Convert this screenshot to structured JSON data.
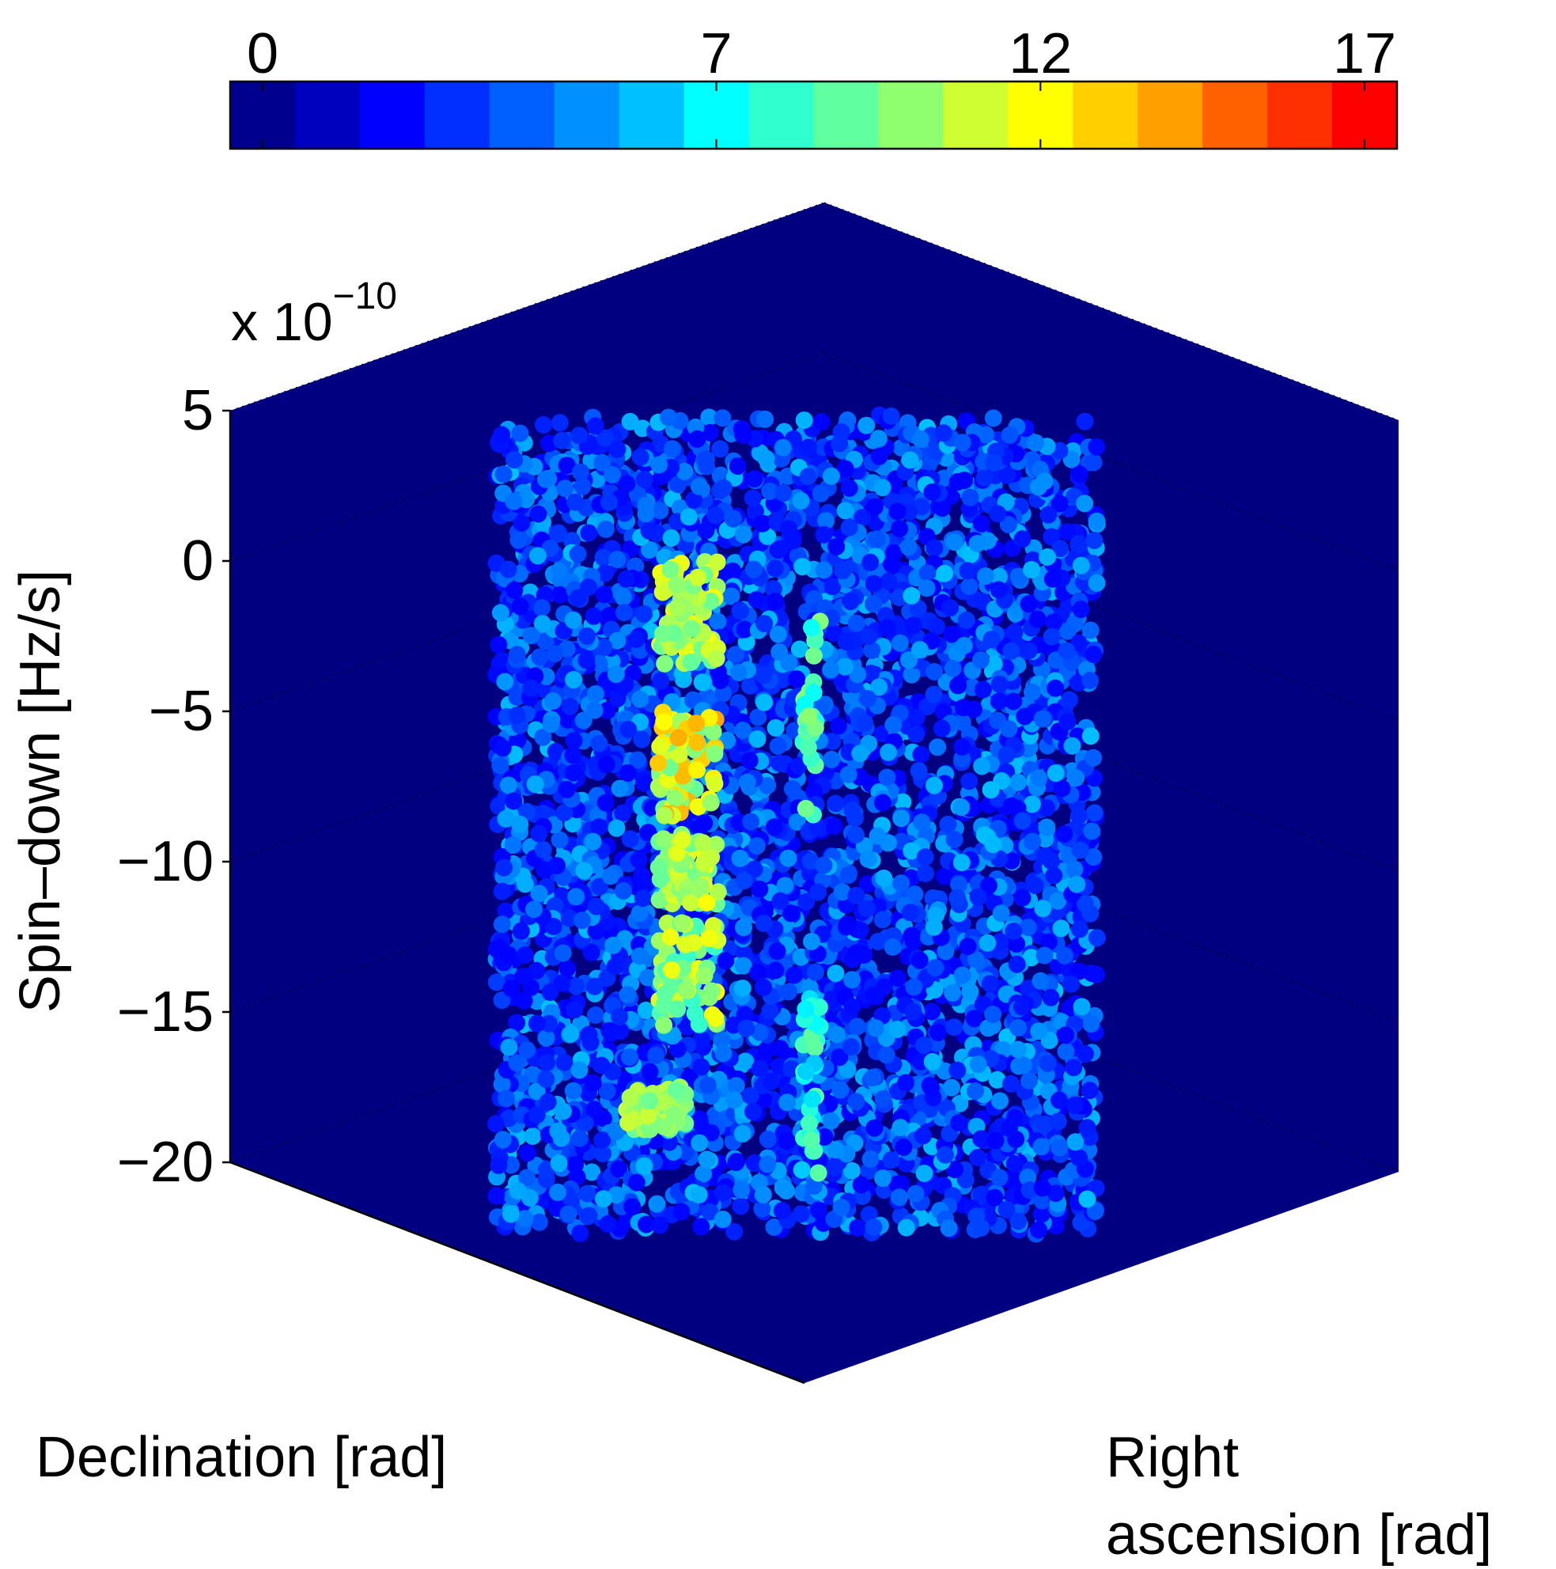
{
  "chart_data": {
    "type": "scatter",
    "title": "",
    "ylabel": "Spin–down [Hz/s]",
    "xlabel": "Declination [rad]",
    "zlabel_lines": [
      "Right",
      "ascension [rad]"
    ],
    "y_exponent": {
      "base": "x 10",
      "power": "−10"
    },
    "y_range": [
      -20,
      5
    ],
    "y_ticks": [
      5,
      0,
      -5,
      -10,
      -15,
      -20
    ],
    "y_tick_labels": [
      "5",
      "0",
      "−5",
      "−10",
      "−15",
      "−20"
    ],
    "y_unit_scale": 1e-10,
    "grid": true,
    "background_color": "#000080",
    "colorbar": {
      "placement": "top",
      "range": [
        0,
        17
      ],
      "ticks": [
        0,
        7,
        12,
        17
      ],
      "tick_labels": [
        "0",
        "7",
        "12",
        "17"
      ],
      "colors": [
        "#00008f",
        "#0000bf",
        "#0000ff",
        "#0030ff",
        "#0060ff",
        "#0090ff",
        "#00c0ff",
        "#00ffff",
        "#30ffcf",
        "#60ff9f",
        "#90ff6f",
        "#cfff30",
        "#ffff00",
        "#ffcf00",
        "#ff9f00",
        "#ff6000",
        "#ff3000",
        "#ff0000"
      ]
    },
    "series": [
      {
        "marker": "filled-circle",
        "cloud": {
          "description_values": "Dense cloud of points spanning spin-down from about -22e-10 to 4.5e-10 Hz/s, colored mostly 3-6 on the colorbar",
          "spin_down_range": [
            -22.3,
            4.5
          ],
          "typical_value_range": [
            2,
            6
          ],
          "point_count_estimate": 4200
        },
        "highlight_clusters": [
          {
            "spin_down": [
              -3.5,
              0.0
            ],
            "value_range": [
              9,
              12
            ]
          },
          {
            "spin_down": [
              -8.5,
              -5.0
            ],
            "value_range": [
              9,
              14
            ]
          },
          {
            "spin_down": [
              -11.5,
              -9.0
            ],
            "value_range": [
              9,
              12
            ]
          },
          {
            "spin_down": [
              -15.5,
              -12.0
            ],
            "value_range": [
              8,
              12
            ]
          },
          {
            "spin_down": [
              -19.0,
              -17.5
            ],
            "value_range": [
              9,
              11
            ]
          },
          {
            "spin_down": [
              -8.5,
              -2.0
            ],
            "value_range": [
              7,
              10
            ]
          },
          {
            "spin_down": [
              -20.5,
              -14.5
            ],
            "value_range": [
              6,
              9
            ]
          }
        ],
        "notable_points": [
          {
            "spin_down": -5.4,
            "value": 13.5
          }
        ]
      }
    ]
  }
}
